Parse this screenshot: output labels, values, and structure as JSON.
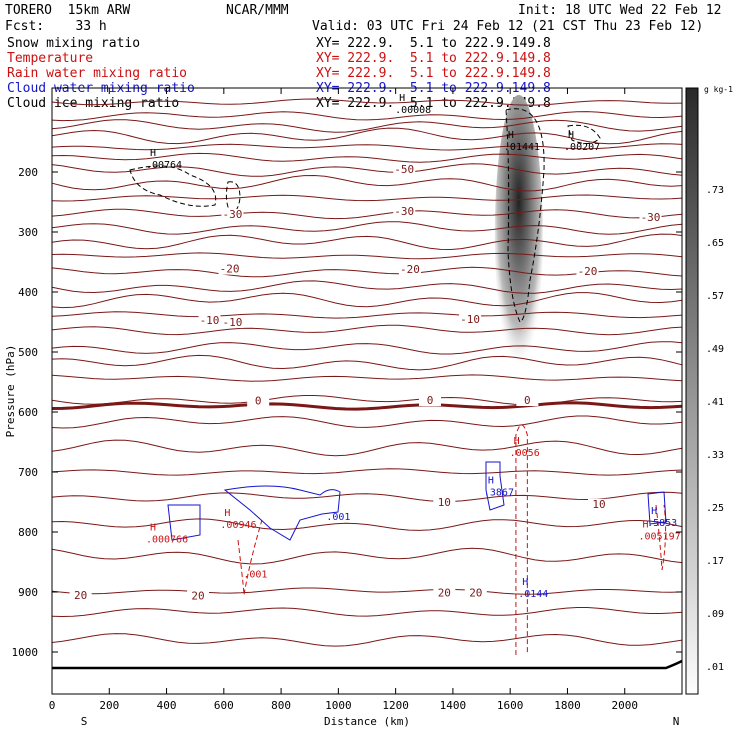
{
  "header": {
    "model": "TORERO  15km ARW",
    "center": "NCAR/MMM",
    "init": "Init: 18 UTC Wed 22 Feb 12",
    "fcst": "Fcst:    33 h",
    "valid": "Valid: 03 UTC Fri 24 Feb 12 (21 CST Thu 23 Feb 12)"
  },
  "legend": [
    {
      "label": "Snow mixing ratio",
      "color": "#000000",
      "xy": "XY= 222.9.  5.1 to 222.9.149.8"
    },
    {
      "label": "Temperature",
      "color": "#cc1010",
      "xy": "XY= 222.9.  5.1 to 222.9.149.8"
    },
    {
      "label": "Rain water mixing ratio",
      "color": "#cc1010",
      "xy": "XY= 222.9.  5.1 to 222.9.149.8"
    },
    {
      "label": "Cloud water mixing ratio",
      "color": "#1515cc",
      "xy": "XY= 222.9.  5.1 to 222.9.149.8"
    },
    {
      "label": "Cloud ice mixing ratio",
      "color": "#000000",
      "xy": "XY= 222.9.  5.1 to 222.9.149.8"
    }
  ],
  "chart_data": {
    "type": "cross-section",
    "xlabel": "Distance (km)",
    "ylabel": "Pressure (hPa)",
    "xlim": [
      0,
      2200
    ],
    "ylim": [
      1050,
      100
    ],
    "x_ticks": [
      0,
      200,
      400,
      600,
      800,
      1000,
      1200,
      1400,
      1600,
      1800,
      2000
    ],
    "y_ticks": [
      200,
      300,
      400,
      500,
      600,
      700,
      800,
      900,
      1000
    ],
    "x_end_labels": {
      "left": "S",
      "right": "N"
    },
    "colorbar": {
      "unit": "g kg-1",
      "labels": [
        ".01",
        ".09",
        ".17",
        ".25",
        ".33",
        ".41",
        ".49",
        ".57",
        ".65",
        ".73"
      ]
    },
    "temperature_contours": [
      {
        "label": "-50",
        "p": 187
      },
      {
        "label": "-30",
        "p": 289
      },
      {
        "label": "-20",
        "p": 380
      },
      {
        "label": "-10",
        "p": 470
      },
      {
        "label": "0",
        "p": 590
      },
      {
        "label": "10",
        "p": 750
      },
      {
        "label": "20",
        "p": 905
      }
    ],
    "temperature_labels": [
      {
        "text": "-50",
        "x": 1230,
        "p": 200
      },
      {
        "text": "-30",
        "x": 630,
        "p": 275
      },
      {
        "text": "-30",
        "x": 1230,
        "p": 270
      },
      {
        "text": "-30",
        "x": 2090,
        "p": 280
      },
      {
        "text": "-20",
        "x": 620,
        "p": 366
      },
      {
        "text": "-20",
        "x": 1250,
        "p": 367
      },
      {
        "text": "-20",
        "x": 1870,
        "p": 370
      },
      {
        "text": "-10",
        "x": 550,
        "p": 452
      },
      {
        "text": "-10",
        "x": 630,
        "p": 455
      },
      {
        "text": "-10",
        "x": 1460,
        "p": 450
      },
      {
        "text": "0",
        "x": 720,
        "p": 586
      },
      {
        "text": "0",
        "x": 1320,
        "p": 585
      },
      {
        "text": "0",
        "x": 1660,
        "p": 585
      },
      {
        "text": "10",
        "x": 1370,
        "p": 755
      },
      {
        "text": "10",
        "x": 1910,
        "p": 758
      },
      {
        "text": "20",
        "x": 100,
        "p": 910
      },
      {
        "text": "20",
        "x": 510,
        "p": 911
      },
      {
        "text": "20",
        "x": 1370,
        "p": 906
      },
      {
        "text": "20",
        "x": 1480,
        "p": 906
      }
    ],
    "highs": [
      {
        "value": ".00764",
        "x": 370,
        "p": 190,
        "color": "#000000"
      },
      {
        "value": ".00008",
        "x": 1240,
        "p": 98,
        "color": "#000000"
      },
      {
        "value": ".01441",
        "x": 1620,
        "p": 160,
        "color": "#000000"
      },
      {
        "value": ".00207",
        "x": 1830,
        "p": 160,
        "color": "#000000"
      },
      {
        "value": ".0056",
        "x": 1640,
        "p": 670,
        "color": "#cc1010"
      },
      {
        "value": ".3867",
        "x": 1550,
        "p": 736,
        "color": "#1515cc"
      },
      {
        "value": ".000766",
        "x": 370,
        "p": 814,
        "color": "#cc1010"
      },
      {
        "value": ".00946",
        "x": 630,
        "p": 790,
        "color": "#cc1010"
      },
      {
        "value": ".0144",
        "x": 1670,
        "p": 905,
        "color": "#1515cc"
      },
      {
        "value": ".5853",
        "x": 2120,
        "p": 787,
        "color": "#1515cc"
      },
      {
        "value": ".005197",
        "x": 2090,
        "p": 809,
        "color": "#cc1010"
      }
    ],
    "misc_labels": [
      {
        "text": ".001",
        "x": 1000,
        "p": 780,
        "color": "#1515cc"
      },
      {
        "text": ".001",
        "x": 710,
        "p": 876,
        "color": "#cc1010"
      }
    ],
    "rain_shaft": {
      "x": 1630,
      "p_top": 605,
      "p_bottom": 1005
    }
  }
}
